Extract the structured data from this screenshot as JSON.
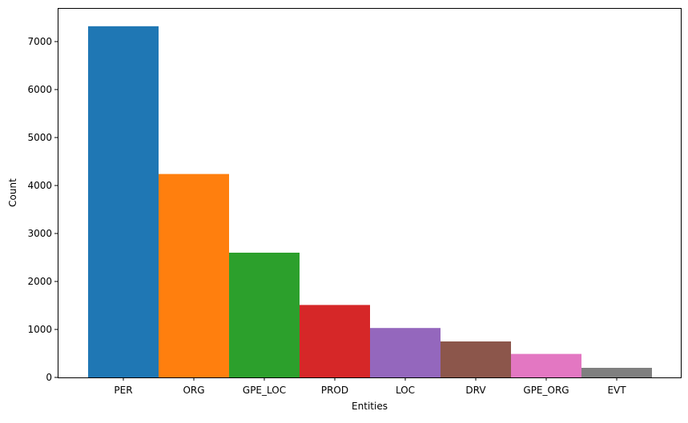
{
  "chart_data": {
    "type": "bar",
    "title": "",
    "xlabel": "Entities",
    "ylabel": "Count",
    "categories": [
      "PER",
      "ORG",
      "GPE_LOC",
      "PROD",
      "LOC",
      "DRV",
      "GPE_ORG",
      "EVT"
    ],
    "values": [
      7320,
      4240,
      2600,
      1510,
      1030,
      750,
      490,
      200
    ],
    "colors": [
      "#1f77b4",
      "#ff7f0e",
      "#2ca02c",
      "#d62728",
      "#9467bd",
      "#8c564b",
      "#e377c2",
      "#7f7f7f"
    ],
    "ylim": [
      0,
      7700
    ],
    "yticks": [
      0,
      1000,
      2000,
      3000,
      4000,
      5000,
      6000,
      7000
    ],
    "grid": false,
    "legend": "none"
  }
}
